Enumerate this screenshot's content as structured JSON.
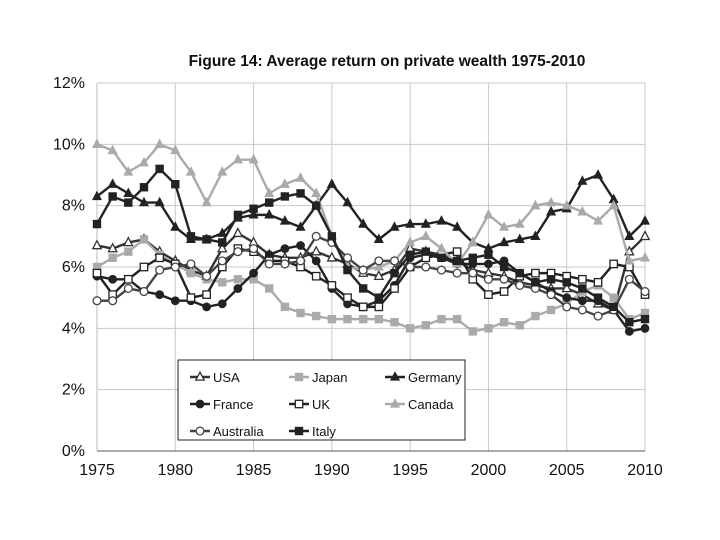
{
  "chart_data": {
    "type": "line",
    "title": "Figure 14: Average return on private wealth 1975-2010",
    "xlabel": "",
    "ylabel": "",
    "xlim": [
      1975,
      2010
    ],
    "ylim": [
      0,
      12
    ],
    "x_ticks": [
      "1975",
      "1980",
      "1985",
      "1990",
      "1995",
      "2000",
      "2005",
      "2010"
    ],
    "y_ticks": [
      "0%",
      "2%",
      "4%",
      "6%",
      "8%",
      "10%",
      "12%"
    ],
    "grid": true,
    "legend": "bottom-left",
    "x": [
      1975,
      1976,
      1977,
      1978,
      1979,
      1980,
      1981,
      1982,
      1983,
      1984,
      1985,
      1986,
      1987,
      1988,
      1989,
      1990,
      1991,
      1992,
      1993,
      1994,
      1995,
      1996,
      1997,
      1998,
      1999,
      2000,
      2001,
      2002,
      2003,
      2004,
      2005,
      2006,
      2007,
      2008,
      2009,
      2010
    ],
    "series": [
      {
        "name": "USA",
        "values": [
          6.7,
          6.6,
          6.8,
          6.9,
          6.5,
          6.2,
          5.9,
          5.7,
          6.6,
          7.1,
          6.8,
          6.4,
          6.3,
          6.3,
          6.5,
          6.3,
          6.1,
          5.8,
          5.7,
          5.9,
          6.6,
          6.5,
          6.4,
          6.2,
          5.9,
          5.8,
          5.7,
          5.5,
          5.4,
          5.3,
          5.3,
          5.1,
          4.8,
          4.6,
          6.5,
          7.0
        ]
      },
      {
        "name": "Japan",
        "values": [
          6.0,
          6.3,
          6.5,
          6.9,
          6.4,
          6.1,
          5.8,
          5.6,
          5.5,
          5.6,
          5.6,
          5.3,
          4.7,
          4.5,
          4.4,
          4.3,
          4.3,
          4.3,
          4.3,
          4.2,
          4.0,
          4.1,
          4.3,
          4.3,
          3.9,
          4.0,
          4.2,
          4.1,
          4.4,
          4.6,
          4.8,
          5.2,
          5.4,
          5.0,
          4.3,
          4.5
        ]
      },
      {
        "name": "Germany",
        "values": [
          8.3,
          8.7,
          8.4,
          8.1,
          8.1,
          7.3,
          6.9,
          6.9,
          7.1,
          7.6,
          7.7,
          7.7,
          7.5,
          7.3,
          8.0,
          8.7,
          8.1,
          7.4,
          6.9,
          7.3,
          7.4,
          7.4,
          7.5,
          7.3,
          6.8,
          6.6,
          6.8,
          6.9,
          7.0,
          7.8,
          7.9,
          8.8,
          9.0,
          8.2,
          7.0,
          7.5
        ]
      },
      {
        "name": "France",
        "values": [
          5.7,
          5.6,
          5.6,
          5.2,
          5.1,
          4.9,
          4.9,
          4.7,
          4.8,
          5.3,
          5.8,
          6.4,
          6.6,
          6.7,
          6.2,
          5.3,
          4.8,
          4.7,
          4.9,
          5.4,
          6.3,
          6.4,
          6.3,
          6.1,
          6.1,
          6.1,
          6.2,
          5.8,
          5.5,
          5.2,
          5.0,
          4.9,
          4.9,
          4.6,
          3.9,
          4.0
        ]
      },
      {
        "name": "UK",
        "values": [
          5.8,
          5.1,
          5.6,
          6.0,
          6.3,
          6.1,
          5.0,
          5.1,
          6.0,
          6.6,
          6.5,
          6.2,
          6.2,
          6.0,
          5.7,
          5.4,
          5.0,
          4.7,
          4.7,
          5.3,
          6.0,
          6.3,
          6.4,
          6.5,
          5.6,
          5.1,
          5.2,
          5.7,
          5.8,
          5.8,
          5.7,
          5.6,
          5.5,
          6.1,
          6.0,
          5.1
        ]
      },
      {
        "name": "Canada",
        "values": [
          10.0,
          9.8,
          9.1,
          9.4,
          10.0,
          9.8,
          9.1,
          8.1,
          9.1,
          9.5,
          9.5,
          8.4,
          8.7,
          8.9,
          8.4,
          7.0,
          6.0,
          5.9,
          6.0,
          6.2,
          6.8,
          7.0,
          6.6,
          6.1,
          6.8,
          7.7,
          7.3,
          7.4,
          8.0,
          8.1,
          8.0,
          7.8,
          7.5,
          8.0,
          6.2,
          6.3
        ]
      },
      {
        "name": "Australia",
        "values": [
          4.9,
          4.9,
          5.3,
          5.2,
          5.9,
          6.0,
          6.1,
          5.7,
          6.2,
          6.5,
          6.6,
          6.1,
          6.1,
          6.2,
          7.0,
          6.8,
          6.3,
          5.9,
          6.2,
          6.2,
          6.0,
          6.0,
          5.9,
          5.8,
          5.8,
          5.6,
          5.6,
          5.4,
          5.3,
          5.1,
          4.7,
          4.6,
          4.4,
          4.6,
          5.6,
          5.2
        ]
      },
      {
        "name": "Italy",
        "values": [
          7.4,
          8.3,
          8.1,
          8.6,
          9.2,
          8.7,
          7.0,
          6.9,
          6.8,
          7.7,
          7.9,
          8.1,
          8.3,
          8.4,
          8.0,
          7.0,
          5.9,
          5.3,
          5.0,
          5.8,
          6.4,
          6.5,
          6.3,
          6.2,
          6.3,
          6.4,
          6.0,
          5.8,
          5.5,
          5.6,
          5.5,
          5.3,
          5.0,
          4.7,
          4.2,
          4.3
        ]
      }
    ],
    "series_colors": [
      "#333333",
      "#aaaaaa",
      "#222222",
      "#222222",
      "#222222",
      "#aaaaaa",
      "#444444",
      "#222222"
    ],
    "series_markers": [
      "triangle-open",
      "square",
      "triangle",
      "circle",
      "square-open",
      "triangle",
      "circle-open",
      "square"
    ]
  }
}
